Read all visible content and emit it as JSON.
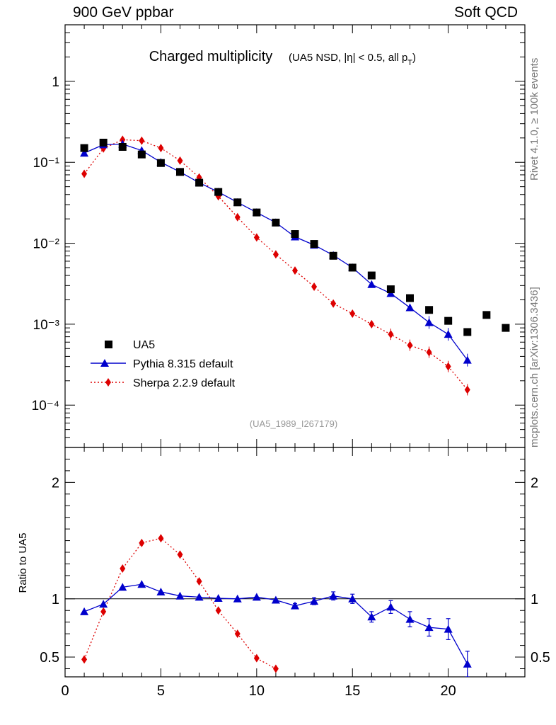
{
  "header": {
    "left": "900 GeV ppbar",
    "right": "Soft QCD"
  },
  "side_labels": {
    "rivet": "Rivet 4.1.0, ≥ 100k events",
    "mcplots": "mcplots.cern.ch [arXiv:1306.3436]"
  },
  "chart_data": {
    "type": "scatter",
    "title_main": "Charged multiplicity",
    "title_sub": "(UA5 NSD, |η| < 0.5, all p",
    "title_sub_index": "T",
    "title_sub_close": ")",
    "analysis_id": "(UA5_1989_I267179)",
    "ratio_ylabel": "Ratio to UA5",
    "xlim": [
      0,
      24
    ],
    "ylim_main": [
      3e-05,
      5
    ],
    "ylim_ratio": [
      0.33,
      2.3
    ],
    "x_ticks": [
      "0",
      "5",
      "10",
      "15",
      "20"
    ],
    "y_ticks_main": [
      "10⁻⁴",
      "10⁻³",
      "10⁻²",
      "10⁻¹",
      "1"
    ],
    "y_ticks_ratio": [
      "0.5",
      "1",
      "2"
    ],
    "legend": [
      "UA5",
      "Pythia 8.315 default",
      "Sherpa 2.2.9 default"
    ],
    "series": [
      {
        "name": "UA5",
        "color": "#000000",
        "x": [
          1,
          2,
          3,
          4,
          5,
          6,
          7,
          8,
          9,
          10,
          11,
          12,
          13,
          14,
          15,
          16,
          17,
          18,
          19,
          20,
          21,
          22,
          23
        ],
        "y": [
          0.15,
          0.175,
          0.155,
          0.125,
          0.098,
          0.076,
          0.056,
          0.043,
          0.032,
          0.024,
          0.018,
          0.013,
          0.0098,
          0.007,
          0.005,
          0.004,
          0.0027,
          0.0021,
          0.0015,
          0.0011,
          0.0008,
          0.0013,
          0.0009
        ]
      },
      {
        "name": "Pythia 8.315 default",
        "color": "#0000cc",
        "x": [
          1,
          2,
          3,
          4,
          5,
          6,
          7,
          8,
          9,
          10,
          11,
          12,
          13,
          14,
          15,
          16,
          17,
          18,
          19,
          20,
          21
        ],
        "y": [
          0.13,
          0.165,
          0.168,
          0.14,
          0.1,
          0.076,
          0.056,
          0.043,
          0.032,
          0.024,
          0.018,
          0.012,
          0.0095,
          0.0071,
          0.005,
          0.0031,
          0.0024,
          0.0016,
          0.00105,
          0.00075,
          0.00036
        ],
        "ratio": [
          0.89,
          0.955,
          1.1,
          1.125,
          1.06,
          1.025,
          1.015,
          1.005,
          1.0,
          1.015,
          0.99,
          0.94,
          0.98,
          1.025,
          1.0,
          0.845,
          0.93,
          0.825,
          0.755,
          0.74,
          0.44
        ]
      },
      {
        "name": "Sherpa 2.2.9 default",
        "color": "#dd0000",
        "x": [
          1,
          2,
          3,
          4,
          5,
          6,
          7,
          8,
          9,
          10,
          11,
          12,
          13,
          14,
          15,
          16,
          17,
          18,
          19,
          20,
          21
        ],
        "y": [
          0.072,
          0.148,
          0.19,
          0.185,
          0.15,
          0.105,
          0.065,
          0.038,
          0.021,
          0.0118,
          0.0073,
          0.0046,
          0.0029,
          0.0018,
          0.00135,
          0.001,
          0.00075,
          0.00055,
          0.00045,
          0.0003,
          0.000155
        ],
        "ratio": [
          0.48,
          0.89,
          1.26,
          1.48,
          1.52,
          1.38,
          1.15,
          0.9,
          0.7,
          0.49,
          0.4
        ]
      }
    ]
  }
}
